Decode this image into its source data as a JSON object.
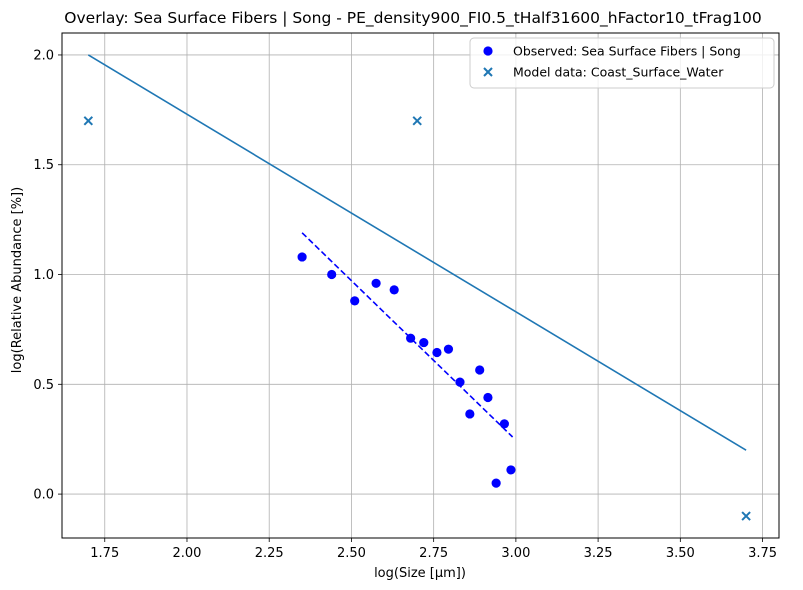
{
  "chart_data": {
    "type": "scatter",
    "title": "Overlay: Sea Surface Fibers | Song - PE_density900_FI0.5_tHalf31600_hFactor10_tFrag100",
    "xlabel": "log(Size [μm])",
    "ylabel": "log(Relative Abundance [%])",
    "xlim": [
      1.62,
      3.8
    ],
    "ylim": [
      -0.2,
      2.1
    ],
    "x_ticks": [
      "1.75",
      "2.00",
      "2.25",
      "2.50",
      "2.75",
      "3.00",
      "3.25",
      "3.50",
      "3.75"
    ],
    "y_ticks": [
      "0.0",
      "0.5",
      "1.0",
      "1.5",
      "2.0"
    ],
    "grid": true,
    "legend_position": "top-right",
    "series": [
      {
        "name": "Observed: Sea Surface Fibers | Song",
        "kind": "scatter",
        "marker": "circle",
        "color": "#0000ff",
        "points": [
          [
            2.35,
            1.08
          ],
          [
            2.44,
            1.0
          ],
          [
            2.51,
            0.88
          ],
          [
            2.575,
            0.96
          ],
          [
            2.63,
            0.93
          ],
          [
            2.68,
            0.71
          ],
          [
            2.72,
            0.69
          ],
          [
            2.76,
            0.645
          ],
          [
            2.795,
            0.66
          ],
          [
            2.83,
            0.51
          ],
          [
            2.86,
            0.365
          ],
          [
            2.89,
            0.565
          ],
          [
            2.915,
            0.44
          ],
          [
            2.94,
            0.05
          ],
          [
            2.965,
            0.32
          ],
          [
            2.985,
            0.11
          ]
        ]
      },
      {
        "name": "Model data: Coast_Surface_Water",
        "kind": "scatter",
        "marker": "x",
        "color": "#1f77b4",
        "points": [
          [
            1.7,
            1.7
          ],
          [
            2.7,
            1.7
          ],
          [
            3.7,
            -0.1
          ]
        ]
      },
      {
        "kind": "line",
        "color": "#1f77b4",
        "style": "solid",
        "points": [
          [
            1.7,
            2.0
          ],
          [
            3.7,
            0.2
          ]
        ]
      },
      {
        "kind": "line",
        "color": "#0000ff",
        "style": "dashed",
        "points": [
          [
            2.35,
            1.19
          ],
          [
            2.99,
            0.26
          ]
        ]
      }
    ]
  }
}
